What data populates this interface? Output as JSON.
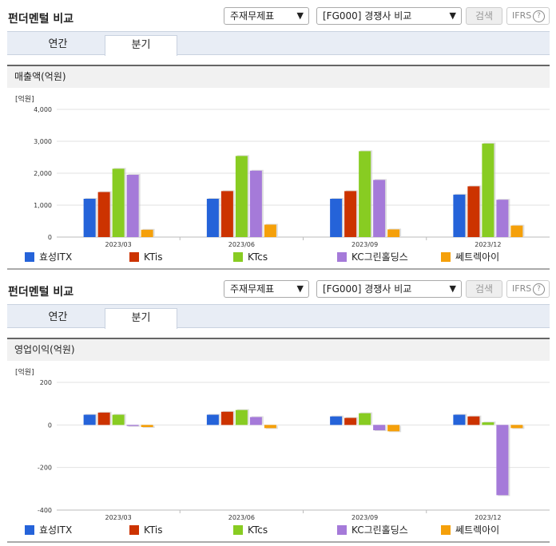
{
  "colors": {
    "s0": "#2563d9",
    "s1": "#cc3300",
    "s2": "#88cc22",
    "s3": "#a57ad9",
    "s4": "#f5a00a"
  },
  "panels": [
    {
      "title": "펀더멘털 비교",
      "select1": "주재무제표",
      "select2": "[FG000] 경쟁사 비교",
      "search_label": "검색",
      "ifrs_label": "IFRS",
      "ifrs_help": "?",
      "tabs": [
        "연간",
        "분기"
      ],
      "subtitle": "매출액(억원)"
    },
    {
      "title": "펀더멘털 비교",
      "select1": "주재무제표",
      "select2": "[FG000] 경쟁사 비교",
      "search_label": "검색",
      "ifrs_label": "IFRS",
      "ifrs_help": "?",
      "tabs": [
        "연간",
        "분기"
      ],
      "subtitle": "영업이익(억원)"
    }
  ],
  "chart_data": [
    {
      "type": "bar",
      "unit_label": "[억원]",
      "categories": [
        "2023/03",
        "2023/06",
        "2023/09",
        "2023/12"
      ],
      "ylim": [
        0,
        4000
      ],
      "yticks": [
        0,
        1000,
        2000,
        3000,
        4000
      ],
      "ytick_labels": [
        "0",
        "1,000",
        "2,000",
        "3,000",
        "4,000"
      ],
      "grid": true,
      "legend": "bottom",
      "series": [
        {
          "name": "효성ITX",
          "values": [
            1200,
            1200,
            1200,
            1330
          ]
        },
        {
          "name": "KTis",
          "values": [
            1410,
            1440,
            1440,
            1590
          ]
        },
        {
          "name": "KTcs",
          "values": [
            2140,
            2540,
            2690,
            2930
          ]
        },
        {
          "name": "KC그린홀딩스",
          "values": [
            1950,
            2080,
            1790,
            1170
          ]
        },
        {
          "name": "쎄트렉아이",
          "values": [
            230,
            390,
            240,
            360
          ]
        }
      ]
    },
    {
      "type": "bar",
      "unit_label": "[억원]",
      "categories": [
        "2023/03",
        "2023/06",
        "2023/09",
        "2023/12"
      ],
      "ylim": [
        -400,
        200
      ],
      "yticks": [
        -400,
        -200,
        0,
        200
      ],
      "ytick_labels": [
        "-400",
        "-200",
        "0",
        "200"
      ],
      "grid": true,
      "legend": "bottom",
      "series": [
        {
          "name": "효성ITX",
          "values": [
            48,
            48,
            40,
            48
          ]
        },
        {
          "name": "KTis",
          "values": [
            58,
            62,
            33,
            40
          ]
        },
        {
          "name": "KTcs",
          "values": [
            48,
            70,
            55,
            12
          ]
        },
        {
          "name": "KC그린홀딩스",
          "values": [
            -5,
            37,
            -25,
            -330
          ]
        },
        {
          "name": "쎄트렉아이",
          "values": [
            -10,
            -15,
            -30,
            -15
          ]
        }
      ]
    }
  ]
}
